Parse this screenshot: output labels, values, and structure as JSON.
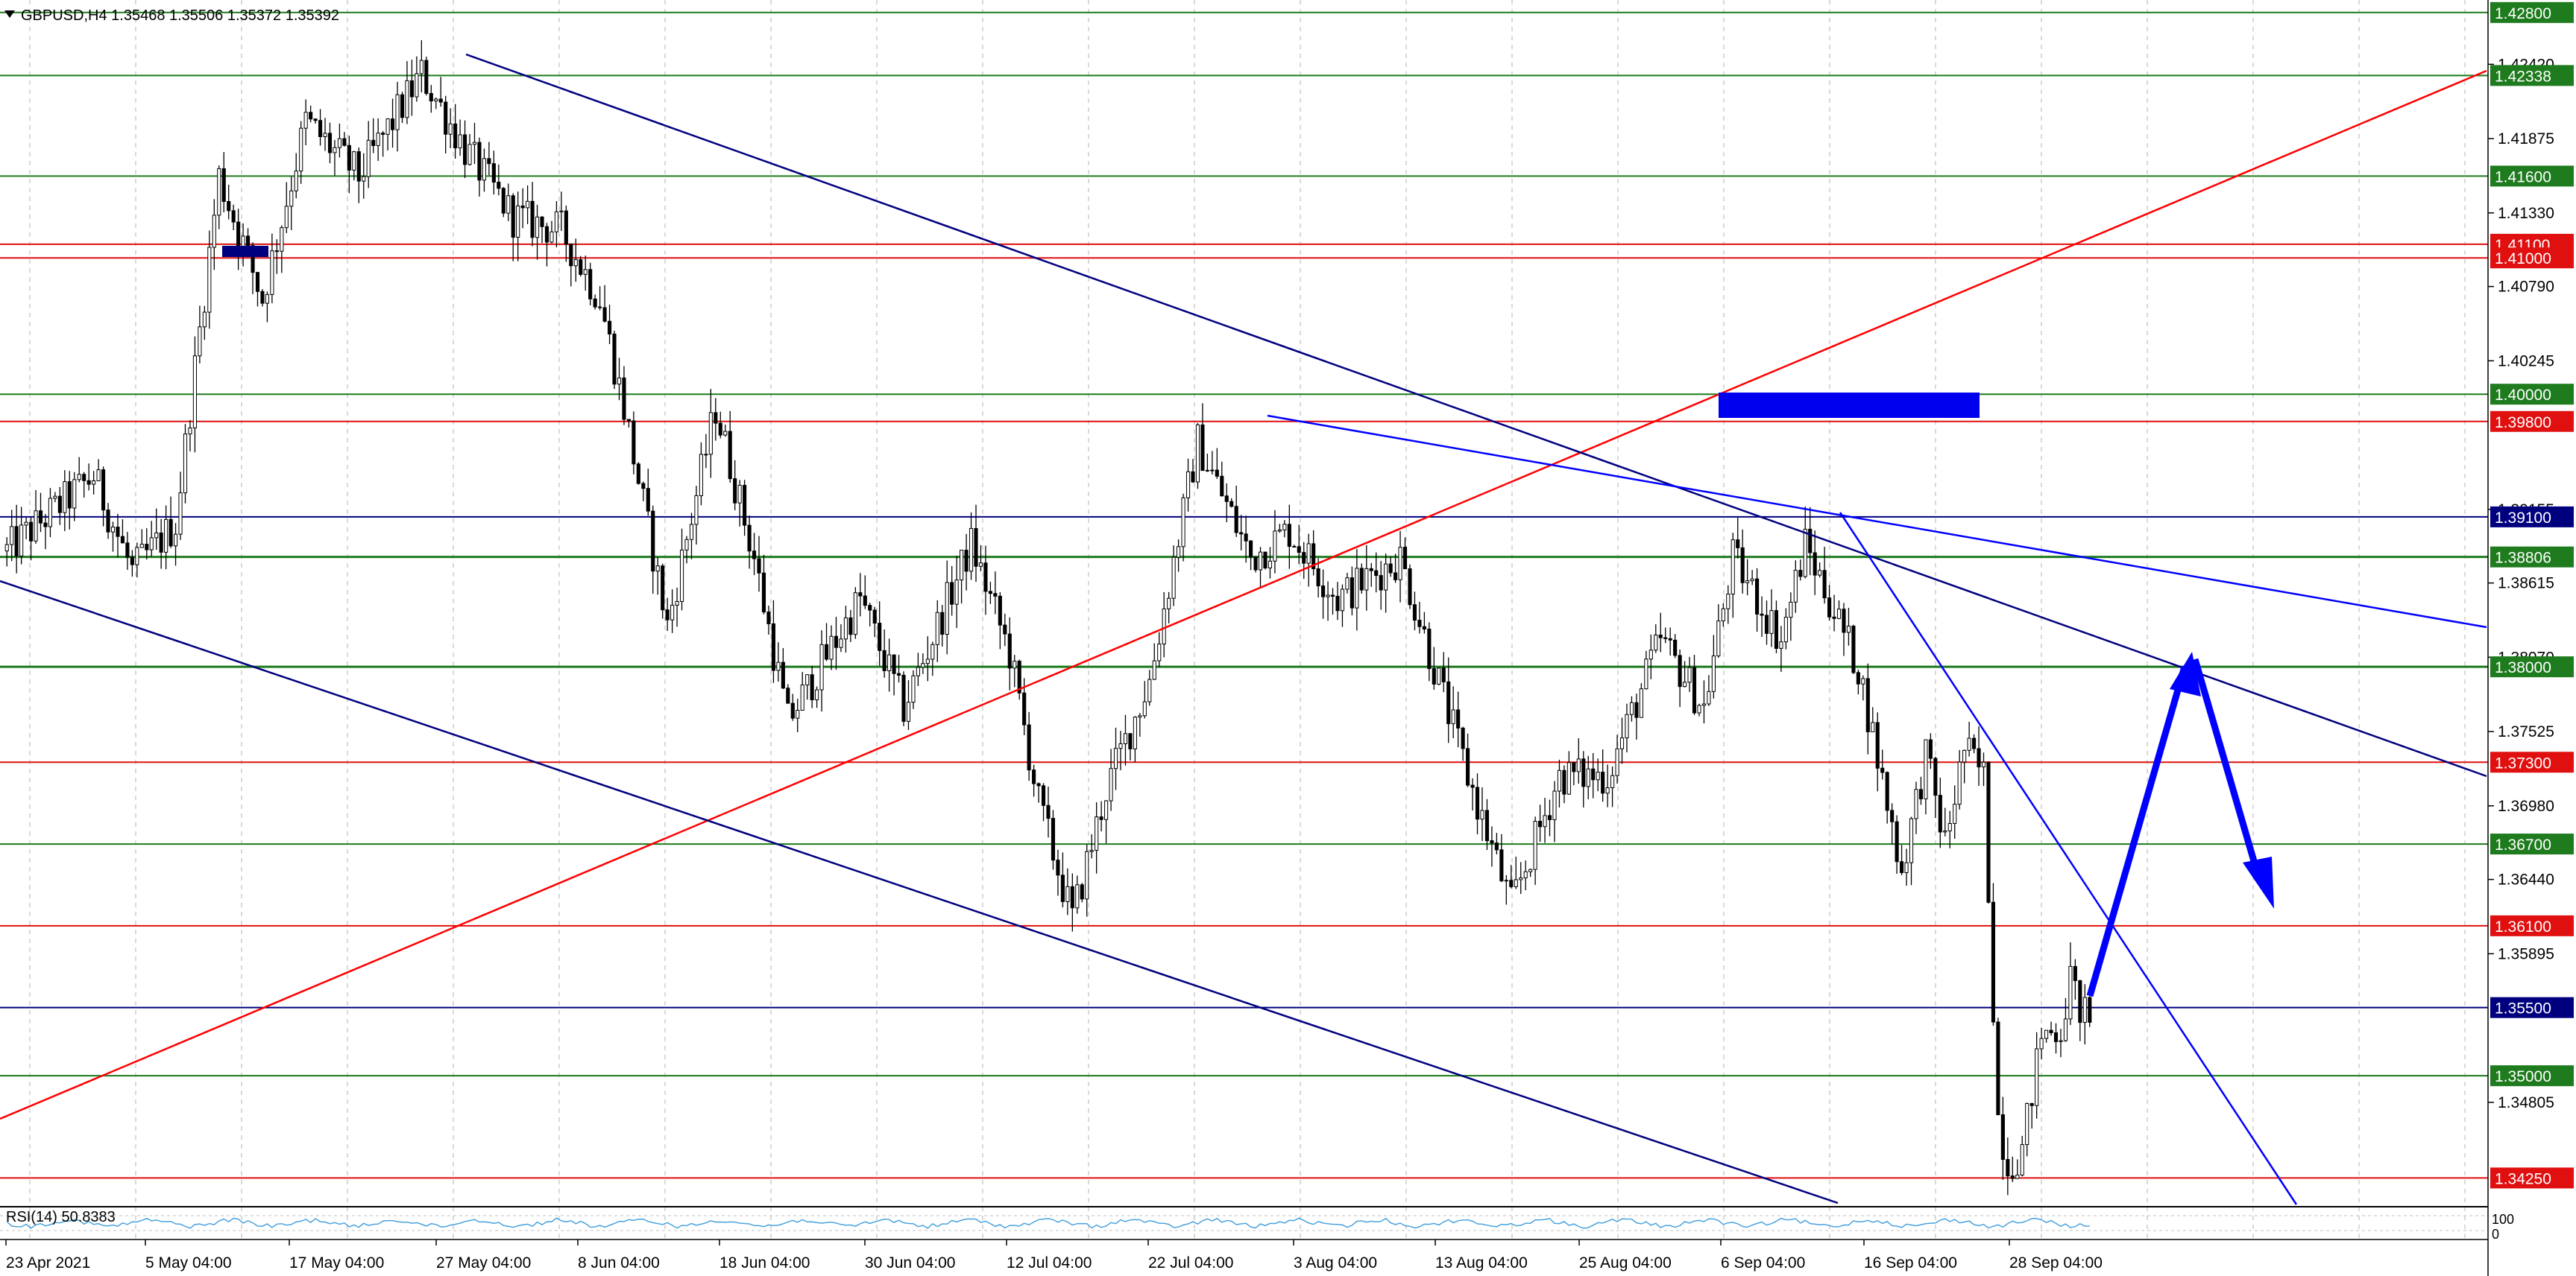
{
  "header": {
    "symbol_info": "GBPUSD,H4  1.35468 1.35506 1.35372 1.35392",
    "indicator_label": "RSI(14) 50.8383"
  },
  "colors": {
    "background": "#ffffff",
    "grid": "#c0c0c0",
    "support_level": "#1e7b1e",
    "resistance_level": "#e01010",
    "pivot_level": "#00007f",
    "trend_blue": "#0000ff",
    "trend_navy": "#000080",
    "trend_red": "#ff0000",
    "zone": "#0000ee",
    "candle": "#000000",
    "rsi_line": "#4aa3df"
  },
  "chart_data": {
    "type": "candlestick",
    "symbol": "GBPUSD",
    "timeframe": "H4",
    "ohlc_last": {
      "open": 1.35468,
      "high": 1.35506,
      "low": 1.35372,
      "close": 1.35392
    },
    "y_range": [
      1.3405,
      1.4287
    ],
    "y_ticks": [
      "1.42420",
      "1.41875",
      "1.41330",
      "1.40790",
      "1.40245",
      "1.39155",
      "1.38615",
      "1.38070",
      "1.37525",
      "1.36980",
      "1.36440",
      "1.35895",
      "1.34805"
    ],
    "x_ticks": [
      "23 Apr 2021",
      "5 May 04:00",
      "17 May 04:00",
      "27 May 04:00",
      "8 Jun 04:00",
      "18 Jun 04:00",
      "30 Jun 04:00",
      "12 Jul 04:00",
      "22 Jul 04:00",
      "3 Aug 04:00",
      "13 Aug 04:00",
      "25 Aug 04:00",
      "6 Sep 04:00",
      "16 Sep 04:00",
      "28 Sep 04:00"
    ],
    "grid": true,
    "levels": [
      {
        "label": "1.42800",
        "value": 1.428,
        "kind": "support"
      },
      {
        "label": "1.42338",
        "value": 1.42338,
        "kind": "support"
      },
      {
        "label": "1.41600",
        "value": 1.416,
        "kind": "support"
      },
      {
        "label": "1.41100",
        "value": 1.411,
        "kind": "resistance"
      },
      {
        "label": "1.41000",
        "value": 1.41,
        "kind": "resistance"
      },
      {
        "label": "1.40000",
        "value": 1.4,
        "kind": "support"
      },
      {
        "label": "1.39800",
        "value": 1.398,
        "kind": "resistance"
      },
      {
        "label": "1.39100",
        "value": 1.391,
        "kind": "pivot"
      },
      {
        "label": "1.38806",
        "value": 1.38806,
        "kind": "support"
      },
      {
        "label": "1.38000",
        "value": 1.38,
        "kind": "support"
      },
      {
        "label": "1.37300",
        "value": 1.373,
        "kind": "resistance"
      },
      {
        "label": "1.36700",
        "value": 1.367,
        "kind": "support"
      },
      {
        "label": "1.36100",
        "value": 1.361,
        "kind": "resistance"
      },
      {
        "label": "1.35500",
        "value": 1.355,
        "kind": "pivot"
      },
      {
        "label": "1.35000",
        "value": 1.35,
        "kind": "support"
      },
      {
        "label": "1.34250",
        "value": 1.3425,
        "kind": "resistance"
      }
    ],
    "price_path": [
      [
        0,
        1.3885
      ],
      [
        18,
        1.394
      ],
      [
        26,
        1.387
      ],
      [
        35,
        1.3905
      ],
      [
        44,
        1.416
      ],
      [
        53,
        1.407
      ],
      [
        62,
        1.42
      ],
      [
        73,
        1.416
      ],
      [
        86,
        1.4235
      ],
      [
        95,
        1.418
      ],
      [
        105,
        1.413
      ],
      [
        115,
        1.412
      ],
      [
        123,
        1.407
      ],
      [
        128,
        1.399
      ],
      [
        137,
        1.383
      ],
      [
        147,
        1.399
      ],
      [
        155,
        1.388
      ],
      [
        162,
        1.376
      ],
      [
        177,
        1.385
      ],
      [
        186,
        1.377
      ],
      [
        200,
        1.389
      ],
      [
        208,
        1.381
      ],
      [
        214,
        1.37
      ],
      [
        221,
        1.3615
      ],
      [
        228,
        1.371
      ],
      [
        237,
        1.379
      ],
      [
        247,
        1.3965
      ],
      [
        258,
        1.388
      ],
      [
        266,
        1.39
      ],
      [
        276,
        1.385
      ],
      [
        289,
        1.388
      ],
      [
        296,
        1.38
      ],
      [
        303,
        1.372
      ],
      [
        312,
        1.3625
      ],
      [
        322,
        1.372
      ],
      [
        332,
        1.372
      ],
      [
        343,
        1.382
      ],
      [
        352,
        1.377
      ],
      [
        358,
        1.388
      ],
      [
        368,
        1.382
      ],
      [
        373,
        1.389
      ],
      [
        384,
        1.38
      ],
      [
        393,
        1.365
      ],
      [
        398,
        1.3735
      ],
      [
        402,
        1.367
      ],
      [
        406,
        1.374
      ],
      [
        410,
        1.372
      ],
      [
        413,
        1.347
      ],
      [
        415,
        1.3435
      ],
      [
        418,
        1.3445
      ],
      [
        422,
        1.353
      ],
      [
        426,
        1.3535
      ],
      [
        428,
        1.357
      ],
      [
        430,
        1.355
      ],
      [
        432,
        1.35392
      ]
    ],
    "rsi": {
      "period": 14,
      "value": 50.8383,
      "scale_labels": [
        "100",
        "0"
      ]
    }
  }
}
